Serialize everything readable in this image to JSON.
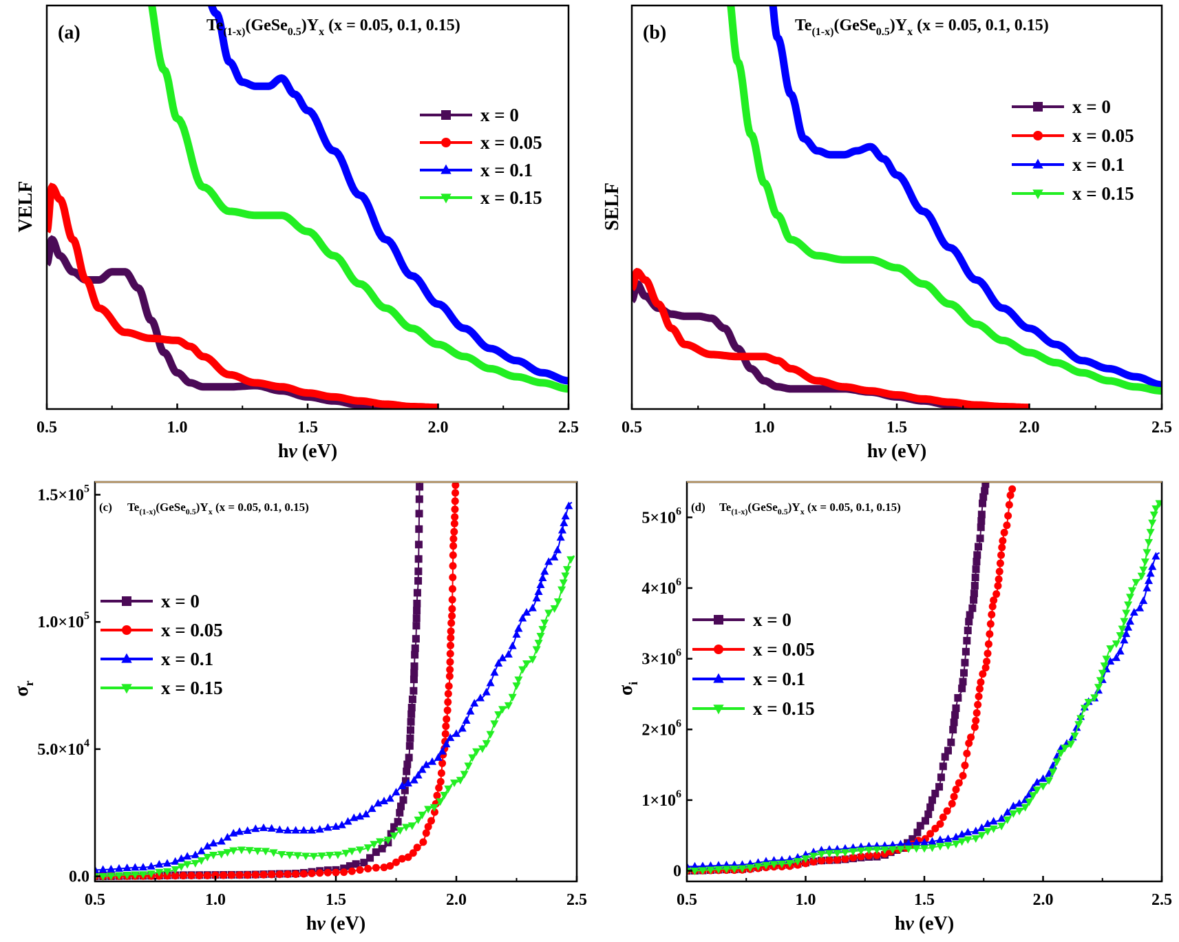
{
  "figure": {
    "formula_title": "Te(1-x)(GeSe0.5)Yx (x = 0.05, 0.1, 0.15)",
    "formula_parts": {
      "te": "Te",
      "te_sub": "(1-x)",
      "gese": "(GeSe",
      "gese_sub": "0.5",
      "close": ")Y",
      "y_sub": "x",
      "tail": " (x = 0.05, 0.1, 0.15)"
    }
  },
  "chart_data": [
    {
      "panel": "(a)",
      "type": "line",
      "ylabel": "VELF",
      "xlabel": "hν (eV)",
      "xlim": [
        0.5,
        2.5
      ],
      "xticks": [
        "0.5",
        "1.0",
        "1.5",
        "2.0",
        "2.5"
      ],
      "yticks": [],
      "ylim": [
        0,
        1
      ],
      "legend_placement": "right",
      "series": [
        {
          "name": "x = 0",
          "color": "#4b0a57",
          "marker": "square",
          "x": [
            0.5,
            0.52,
            0.55,
            0.6,
            0.65,
            0.7,
            0.75,
            0.8,
            0.85,
            0.9,
            0.95,
            1.0,
            1.05,
            1.1,
            1.2,
            1.3,
            1.4,
            1.5,
            1.6,
            1.7,
            1.8,
            1.85
          ],
          "y": [
            0.36,
            0.42,
            0.38,
            0.34,
            0.32,
            0.32,
            0.34,
            0.34,
            0.3,
            0.22,
            0.14,
            0.09,
            0.065,
            0.055,
            0.055,
            0.058,
            0.045,
            0.03,
            0.02,
            0.01,
            0.005,
            0.0
          ]
        },
        {
          "name": "x = 0.05",
          "color": "#ff0000",
          "marker": "circle",
          "x": [
            0.5,
            0.52,
            0.55,
            0.6,
            0.65,
            0.7,
            0.8,
            0.9,
            1.0,
            1.05,
            1.1,
            1.2,
            1.3,
            1.4,
            1.5,
            1.6,
            1.7,
            1.8,
            1.9,
            2.0
          ],
          "y": [
            0.44,
            0.55,
            0.52,
            0.42,
            0.32,
            0.25,
            0.19,
            0.175,
            0.17,
            0.155,
            0.13,
            0.085,
            0.065,
            0.055,
            0.04,
            0.03,
            0.02,
            0.012,
            0.006,
            0.004
          ]
        },
        {
          "name": "x = 0.1",
          "color": "#0000ff",
          "marker": "triangle-up",
          "x": [
            1.1,
            1.15,
            1.2,
            1.25,
            1.3,
            1.35,
            1.4,
            1.45,
            1.5,
            1.6,
            1.7,
            1.8,
            1.9,
            2.0,
            2.1,
            2.2,
            2.3,
            2.4,
            2.5
          ],
          "y": [
            1.05,
            0.98,
            0.86,
            0.81,
            0.8,
            0.8,
            0.82,
            0.78,
            0.74,
            0.64,
            0.53,
            0.42,
            0.33,
            0.26,
            0.2,
            0.15,
            0.12,
            0.09,
            0.07
          ]
        },
        {
          "name": "x = 0.15",
          "color": "#22ee22",
          "marker": "triangle-down",
          "x": [
            0.88,
            0.95,
            1.0,
            1.1,
            1.2,
            1.3,
            1.4,
            1.5,
            1.6,
            1.7,
            1.8,
            1.9,
            2.0,
            2.1,
            2.2,
            2.3,
            2.4,
            2.5
          ],
          "y": [
            1.05,
            0.84,
            0.72,
            0.55,
            0.49,
            0.48,
            0.48,
            0.44,
            0.38,
            0.31,
            0.25,
            0.2,
            0.16,
            0.13,
            0.1,
            0.08,
            0.065,
            0.05
          ]
        }
      ]
    },
    {
      "panel": "(b)",
      "type": "line",
      "ylabel": "SELF",
      "xlabel": "hν (eV)",
      "xlim": [
        0.5,
        2.5
      ],
      "xticks": [
        "0.5",
        "1.0",
        "1.5",
        "2.0",
        "2.5"
      ],
      "yticks": [],
      "ylim": [
        0,
        1
      ],
      "legend_placement": "right",
      "series": [
        {
          "name": "x = 0",
          "color": "#4b0a57",
          "marker": "square",
          "x": [
            0.5,
            0.52,
            0.55,
            0.6,
            0.65,
            0.7,
            0.75,
            0.8,
            0.85,
            0.9,
            0.95,
            1.0,
            1.05,
            1.1,
            1.2,
            1.3,
            1.4,
            1.5,
            1.6,
            1.7,
            1.8,
            1.85
          ],
          "y": [
            0.27,
            0.31,
            0.28,
            0.25,
            0.235,
            0.23,
            0.23,
            0.225,
            0.2,
            0.15,
            0.1,
            0.07,
            0.055,
            0.05,
            0.05,
            0.05,
            0.042,
            0.03,
            0.02,
            0.01,
            0.005,
            0.0
          ]
        },
        {
          "name": "x = 0.05",
          "color": "#ff0000",
          "marker": "circle",
          "x": [
            0.5,
            0.52,
            0.55,
            0.6,
            0.65,
            0.7,
            0.8,
            0.9,
            1.0,
            1.05,
            1.1,
            1.2,
            1.3,
            1.4,
            1.5,
            1.6,
            1.7,
            1.8,
            1.9,
            2.0
          ],
          "y": [
            0.3,
            0.34,
            0.32,
            0.26,
            0.2,
            0.16,
            0.135,
            0.13,
            0.13,
            0.12,
            0.1,
            0.07,
            0.055,
            0.045,
            0.035,
            0.025,
            0.017,
            0.01,
            0.006,
            0.004
          ]
        },
        {
          "name": "x = 0.1",
          "color": "#0000ff",
          "marker": "triangle-up",
          "x": [
            1.02,
            1.05,
            1.1,
            1.15,
            1.2,
            1.25,
            1.3,
            1.35,
            1.4,
            1.45,
            1.5,
            1.6,
            1.7,
            1.8,
            1.9,
            2.0,
            2.1,
            2.2,
            2.3,
            2.4,
            2.5
          ],
          "y": [
            1.05,
            0.92,
            0.78,
            0.67,
            0.64,
            0.63,
            0.63,
            0.64,
            0.65,
            0.62,
            0.58,
            0.49,
            0.4,
            0.32,
            0.25,
            0.2,
            0.16,
            0.12,
            0.1,
            0.08,
            0.06
          ]
        },
        {
          "name": "x = 0.15",
          "color": "#22ee22",
          "marker": "triangle-down",
          "x": [
            0.86,
            0.9,
            0.95,
            1.0,
            1.05,
            1.1,
            1.2,
            1.3,
            1.4,
            1.5,
            1.6,
            1.7,
            1.8,
            1.9,
            2.0,
            2.1,
            2.2,
            2.3,
            2.4,
            2.5
          ],
          "y": [
            1.05,
            0.86,
            0.68,
            0.56,
            0.48,
            0.42,
            0.38,
            0.37,
            0.37,
            0.35,
            0.31,
            0.26,
            0.21,
            0.17,
            0.14,
            0.115,
            0.09,
            0.07,
            0.055,
            0.045
          ]
        }
      ]
    },
    {
      "panel": "(c)",
      "type": "line",
      "ylabel": "σr",
      "ylabel_main": "σ",
      "ylabel_sub": "r",
      "xlabel": "hν (eV)",
      "xlim": [
        0.5,
        2.5
      ],
      "ylim": [
        -2000,
        155000
      ],
      "xticks": [
        "0.5",
        "1.0",
        "1.5",
        "2.0",
        "2.5"
      ],
      "yticks": [
        {
          "value": 0,
          "base": "0.0",
          "exp": ""
        },
        {
          "value": 50000,
          "base": "5.0×10",
          "exp": "4"
        },
        {
          "value": 100000,
          "base": "1.0×10",
          "exp": "5"
        },
        {
          "value": 150000,
          "base": "1.5×10",
          "exp": "5"
        }
      ],
      "legend_placement": "left",
      "series": [
        {
          "name": "x = 0",
          "color": "#4b0a57",
          "marker": "square",
          "x": [
            0.5,
            0.7,
            0.9,
            1.1,
            1.3,
            1.5,
            1.6,
            1.7,
            1.75,
            1.78,
            1.8,
            1.82,
            1.83,
            1.84,
            1.85
          ],
          "y": [
            0,
            200,
            500,
            600,
            1000,
            2500,
            5000,
            11000,
            20000,
            30000,
            45000,
            70000,
            90000,
            113000,
            160000
          ]
        },
        {
          "name": "x = 0.05",
          "color": "#ff0000",
          "marker": "circle",
          "x": [
            0.5,
            0.7,
            0.9,
            1.1,
            1.3,
            1.5,
            1.7,
            1.8,
            1.85,
            1.9,
            1.93,
            1.95,
            1.96,
            1.97,
            1.98,
            1.99,
            2.0
          ],
          "y": [
            0,
            100,
            300,
            500,
            800,
            1500,
            3500,
            7500,
            12000,
            22000,
            35000,
            50000,
            62000,
            75000,
            100000,
            135000,
            160000
          ]
        },
        {
          "name": "x = 0.1",
          "color": "#0000ff",
          "marker": "triangle-up",
          "x": [
            0.5,
            0.7,
            0.8,
            0.9,
            1.0,
            1.1,
            1.2,
            1.3,
            1.4,
            1.5,
            1.6,
            1.7,
            1.8,
            1.9,
            2.0,
            2.1,
            2.2,
            2.3,
            2.4,
            2.48
          ],
          "y": [
            2500,
            3500,
            5000,
            8000,
            13000,
            17500,
            19000,
            18000,
            18000,
            19500,
            23500,
            29500,
            36500,
            45000,
            56000,
            70000,
            86000,
            104000,
            125000,
            147000
          ]
        },
        {
          "name": "x = 0.15",
          "color": "#22ee22",
          "marker": "triangle-down",
          "x": [
            0.5,
            0.7,
            0.8,
            0.9,
            1.0,
            1.1,
            1.2,
            1.3,
            1.4,
            1.5,
            1.6,
            1.7,
            1.8,
            1.9,
            2.0,
            2.1,
            2.2,
            2.3,
            2.4,
            2.49
          ],
          "y": [
            0,
            800,
            2000,
            5000,
            8500,
            10500,
            10000,
            8500,
            8000,
            8500,
            10500,
            14000,
            19500,
            27000,
            37000,
            50000,
            66000,
            84000,
            105000,
            126000
          ]
        }
      ]
    },
    {
      "panel": "(d)",
      "type": "line",
      "ylabel": "σi",
      "ylabel_main": "σ",
      "ylabel_sub": "i",
      "xlabel": "hν (eV)",
      "xlim": [
        0.5,
        2.5
      ],
      "ylim": [
        -150000,
        5500000
      ],
      "xticks": [
        "0.5",
        "1.0",
        "1.5",
        "2.0",
        "2.5"
      ],
      "yticks": [
        {
          "value": 0,
          "base": "0",
          "exp": ""
        },
        {
          "value": 1000000,
          "base": "1×10",
          "exp": "6"
        },
        {
          "value": 2000000,
          "base": "2×10",
          "exp": "6"
        },
        {
          "value": 3000000,
          "base": "3×10",
          "exp": "6"
        },
        {
          "value": 4000000,
          "base": "4×10",
          "exp": "6"
        },
        {
          "value": 5000000,
          "base": "5×10",
          "exp": "6"
        }
      ],
      "legend_placement": "left",
      "series": [
        {
          "name": "x = 0",
          "color": "#4b0a57",
          "marker": "square",
          "x": [
            0.5,
            0.7,
            0.9,
            1.1,
            1.3,
            1.4,
            1.45,
            1.5,
            1.55,
            1.6,
            1.65,
            1.7,
            1.73,
            1.75,
            1.76
          ],
          "y": [
            0,
            20000,
            80000,
            150000,
            200000,
            300000,
            450000,
            700000,
            1100000,
            1700000,
            2500000,
            3700000,
            4600000,
            5300000,
            5500000
          ]
        },
        {
          "name": "x = 0.05",
          "color": "#ff0000",
          "marker": "circle",
          "x": [
            0.5,
            0.7,
            0.9,
            1.1,
            1.3,
            1.4,
            1.5,
            1.55,
            1.6,
            1.65,
            1.7,
            1.75,
            1.8,
            1.84,
            1.87
          ],
          "y": [
            0,
            10000,
            60000,
            150000,
            220000,
            300000,
            450000,
            600000,
            850000,
            1250000,
            1900000,
            2800000,
            3900000,
            4800000,
            5400000
          ]
        },
        {
          "name": "x = 0.1",
          "color": "#0000ff",
          "marker": "triangle-up",
          "x": [
            0.5,
            0.7,
            0.9,
            1.1,
            1.3,
            1.5,
            1.6,
            1.7,
            1.8,
            1.9,
            2.0,
            2.1,
            2.2,
            2.3,
            2.4,
            2.49
          ],
          "y": [
            60000,
            80000,
            150000,
            300000,
            350000,
            400000,
            450000,
            550000,
            700000,
            950000,
            1300000,
            1800000,
            2400000,
            3000000,
            3700000,
            4500000
          ]
        },
        {
          "name": "x = 0.15",
          "color": "#22ee22",
          "marker": "triangle-down",
          "x": [
            0.5,
            0.7,
            0.9,
            1.1,
            1.3,
            1.5,
            1.6,
            1.7,
            1.8,
            1.9,
            2.0,
            2.1,
            2.2,
            2.3,
            2.4,
            2.49
          ],
          "y": [
            0,
            30000,
            100000,
            250000,
            300000,
            320000,
            360000,
            450000,
            600000,
            850000,
            1200000,
            1750000,
            2400000,
            3200000,
            4100000,
            5200000
          ]
        }
      ]
    }
  ]
}
